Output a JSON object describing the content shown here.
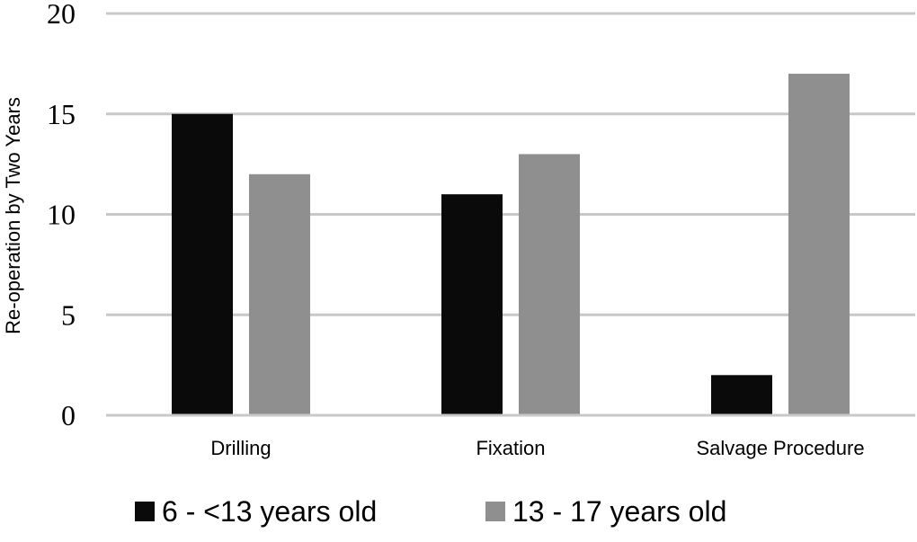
{
  "chart_data": {
    "type": "bar",
    "categories": [
      "Drilling",
      "Fixation",
      "Salvage Procedure"
    ],
    "series": [
      {
        "name": "6 - <13 years old",
        "values": [
          15,
          11,
          2
        ],
        "color": "#0a0a0a"
      },
      {
        "name": "13 - 17 years old",
        "values": [
          12,
          13,
          17
        ],
        "color": "#8f8f8f"
      }
    ],
    "ylabel": "Re-operation by Two Years",
    "ylim": [
      0,
      20
    ],
    "yticks": [
      0,
      5,
      10,
      15,
      20
    ],
    "grid": true,
    "legend_position": "bottom"
  }
}
